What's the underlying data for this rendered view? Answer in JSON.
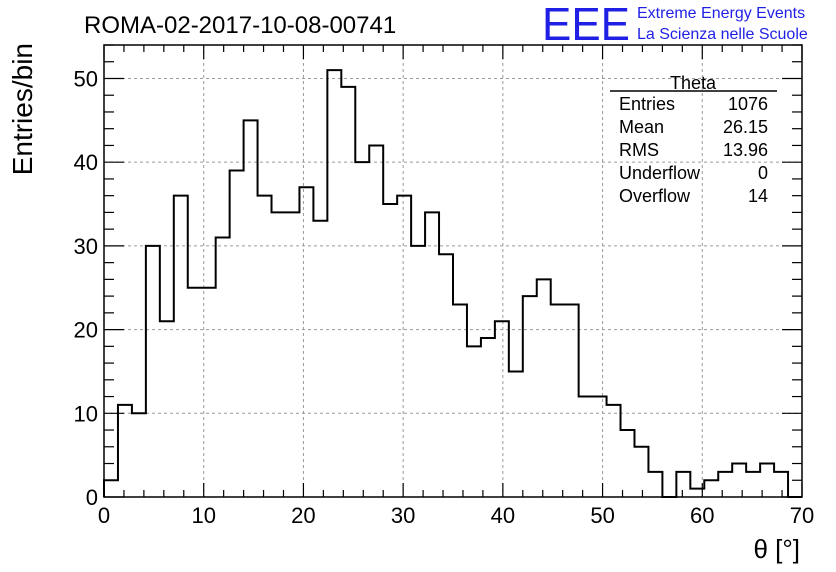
{
  "chart_data": {
    "type": "histogram",
    "title": "ROMA-02-2017-10-08-00741",
    "xlabel": "θ [°]",
    "ylabel": "Entries/bin",
    "xlim": [
      0,
      70
    ],
    "ylim": [
      0,
      54
    ],
    "x_ticks": [
      0,
      10,
      20,
      30,
      40,
      50,
      60,
      70
    ],
    "y_ticks": [
      0,
      10,
      20,
      30,
      40,
      50
    ],
    "grid": true,
    "bin_width": 1.4,
    "series": [
      {
        "values": [
          2,
          11,
          10,
          30,
          21,
          36,
          25,
          25,
          31,
          39,
          45,
          36,
          34,
          34,
          37,
          33,
          51,
          49,
          40,
          42,
          35,
          36,
          30,
          34,
          29,
          23,
          18,
          19,
          21,
          15,
          24,
          26,
          23,
          23,
          12,
          12,
          11,
          8,
          6,
          3,
          0,
          3,
          1,
          2,
          3,
          4,
          3,
          4,
          3,
          0
        ]
      }
    ],
    "stats": {
      "name": "Theta",
      "rows": [
        {
          "label": "Entries",
          "value": "1076"
        },
        {
          "label": "Mean",
          "value": "26.15"
        },
        {
          "label": "RMS",
          "value": "13.96"
        },
        {
          "label": "Underflow",
          "value": "0"
        },
        {
          "label": "Overflow",
          "value": "14"
        }
      ]
    }
  },
  "logo": {
    "mark": "EEE",
    "line1": "Extreme Energy Events",
    "line2": "La Scienza nelle Scuole",
    "color": "#1f1fe6"
  }
}
